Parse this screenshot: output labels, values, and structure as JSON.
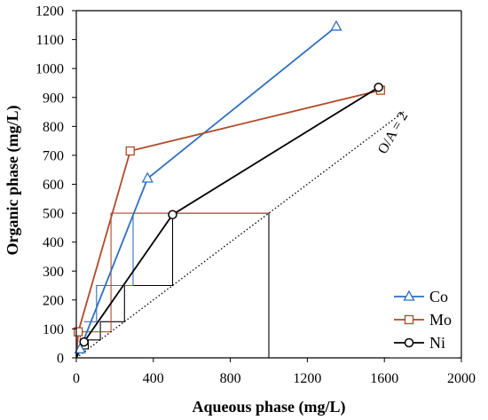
{
  "chart_data": {
    "type": "line",
    "xlabel": "Aqueous phase (mg/L)",
    "ylabel": "Organic phase (mg/L)",
    "xlim": [
      0,
      2000
    ],
    "ylim": [
      0,
      1200
    ],
    "x_ticks": [
      0,
      400,
      800,
      1200,
      1600,
      2000
    ],
    "y_ticks": [
      0,
      100,
      200,
      300,
      400,
      500,
      600,
      700,
      800,
      900,
      1000,
      1100,
      1200
    ],
    "x_tick_labels": [
      "0",
      "400",
      "800",
      "1200",
      "1600",
      "2000"
    ],
    "y_tick_labels": [
      "0",
      "100",
      "200",
      "300",
      "400",
      "500",
      "600",
      "700",
      "800",
      "900",
      "1000",
      "1100",
      "1200"
    ],
    "grid": false,
    "legend_position": "bottom-right",
    "series": [
      {
        "name": "Co",
        "color": "#2f6fbf",
        "marker": "triangle",
        "points": [
          [
            0,
            0
          ],
          [
            20,
            30
          ],
          [
            370,
            620
          ],
          [
            1350,
            1145
          ]
        ]
      },
      {
        "name": "Mo",
        "color": "#b04a2a",
        "marker": "square",
        "points": [
          [
            0,
            5
          ],
          [
            10,
            90
          ],
          [
            280,
            715
          ],
          [
            1580,
            925
          ]
        ]
      },
      {
        "name": "Ni",
        "color": "#000000",
        "marker": "circle",
        "points": [
          [
            0,
            0
          ],
          [
            40,
            55
          ],
          [
            500,
            495
          ],
          [
            1570,
            935
          ]
        ]
      }
    ],
    "operating_line": {
      "label": "O/A = 2",
      "points": [
        [
          0,
          0
        ],
        [
          1700,
          850
        ]
      ],
      "style": "dotted",
      "color": "#000000"
    },
    "stage_steps": [
      {
        "color": "#000000",
        "points": [
          [
            1000,
            0
          ],
          [
            1000,
            500
          ],
          [
            500,
            500
          ],
          [
            500,
            250
          ],
          [
            250,
            250
          ],
          [
            250,
            125
          ],
          [
            125,
            125
          ],
          [
            125,
            62
          ],
          [
            62,
            62
          ],
          [
            62,
            31
          ],
          [
            31,
            31
          ]
        ]
      },
      {
        "color": "#2f6fbf",
        "points": [
          [
            1000,
            500
          ],
          [
            295,
            500
          ],
          [
            295,
            250
          ],
          [
            105,
            250
          ],
          [
            105,
            125
          ],
          [
            40,
            125
          ]
        ]
      },
      {
        "color": "#b04a2a",
        "points": [
          [
            1000,
            500
          ],
          [
            180,
            500
          ],
          [
            180,
            90
          ],
          [
            20,
            90
          ],
          [
            20,
            40
          ],
          [
            5,
            40
          ]
        ]
      }
    ]
  }
}
